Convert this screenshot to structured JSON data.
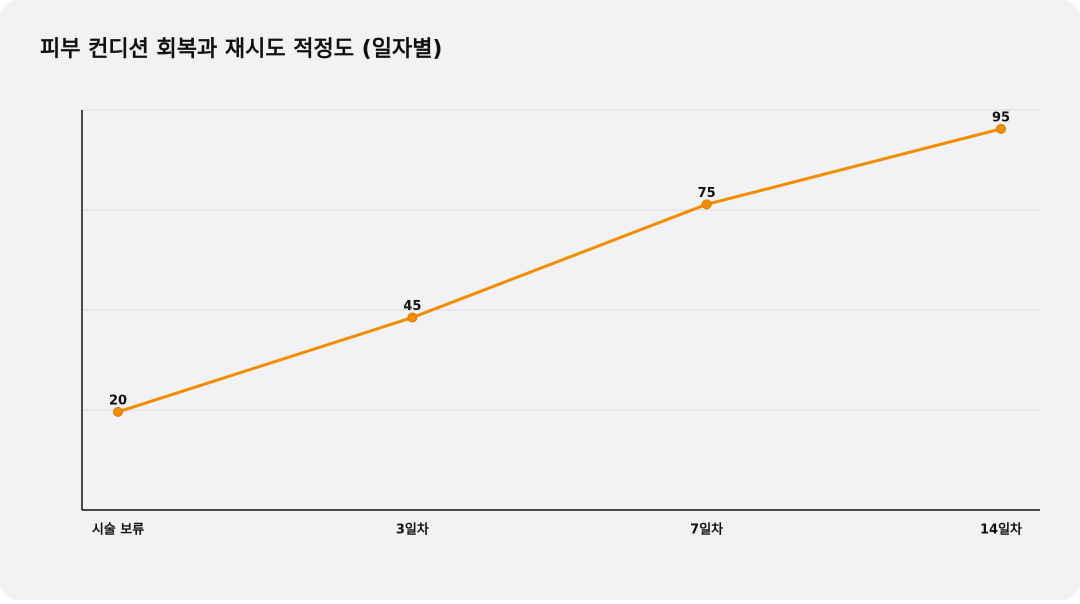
{
  "chart_data": {
    "type": "line",
    "title": "피부 컨디션 회복과 재시도 적정도 (일자별)",
    "categories": [
      "시술 보류",
      "3일차",
      "7일차",
      "14일차"
    ],
    "values": [
      20,
      45,
      75,
      95
    ],
    "color": "#f28c00",
    "ylim": [
      -6,
      100
    ],
    "yticks": [
      20.5,
      47,
      73.5,
      100
    ],
    "grid": true
  }
}
